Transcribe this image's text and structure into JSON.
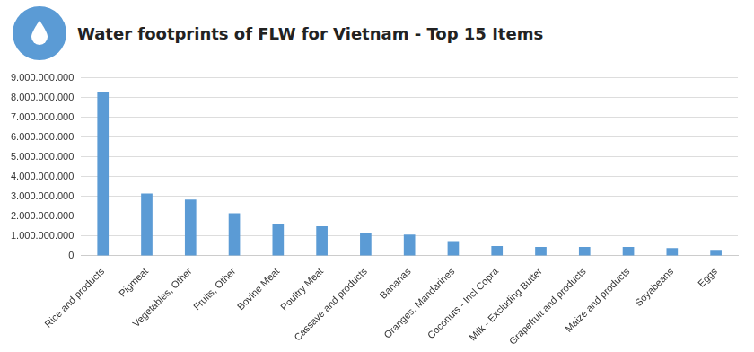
{
  "chart_data": {
    "type": "bar",
    "title": "Water footprints of FLW for Vietnam - Top 15 Items",
    "categories": [
      "Rice and products",
      "Pigmeat",
      "Vegetables, Other",
      "Fruits, Other",
      "Bovine Meat",
      "Poultry Meat",
      "Cassave and products",
      "Bananas",
      "Oranges, Mandarines",
      "Coconuts - Incl Copra",
      "Milk - Excluding Butter",
      "Grapefruit and products",
      "Maize and products",
      "Soyabeans",
      "Eggs"
    ],
    "values": [
      8300000000,
      3150000000,
      2850000000,
      2150000000,
      1600000000,
      1500000000,
      1180000000,
      1070000000,
      750000000,
      500000000,
      450000000,
      450000000,
      450000000,
      400000000,
      300000000
    ],
    "color": "#5b9bd5",
    "ylim": [
      0,
      9000000000
    ],
    "yticks": [
      0,
      {
        "value": 1000000000,
        "label": "1.000.000.000"
      },
      {
        "value": 2000000000,
        "label": "2.000.000.000"
      },
      {
        "value": 3000000000,
        "label": "3.000.000.000"
      },
      {
        "value": 4000000000,
        "label": "4.000.000.000"
      },
      {
        "value": 5000000000,
        "label": "5.000.000.000"
      },
      {
        "value": 6000000000,
        "label": "6.000.000.000"
      },
      {
        "value": 7000000000,
        "label": "7.000.000.000"
      },
      {
        "value": 8000000000,
        "label": "8.000.000.000"
      },
      {
        "value": 9000000000,
        "label": "9.000.000.000"
      }
    ],
    "grid": true
  }
}
